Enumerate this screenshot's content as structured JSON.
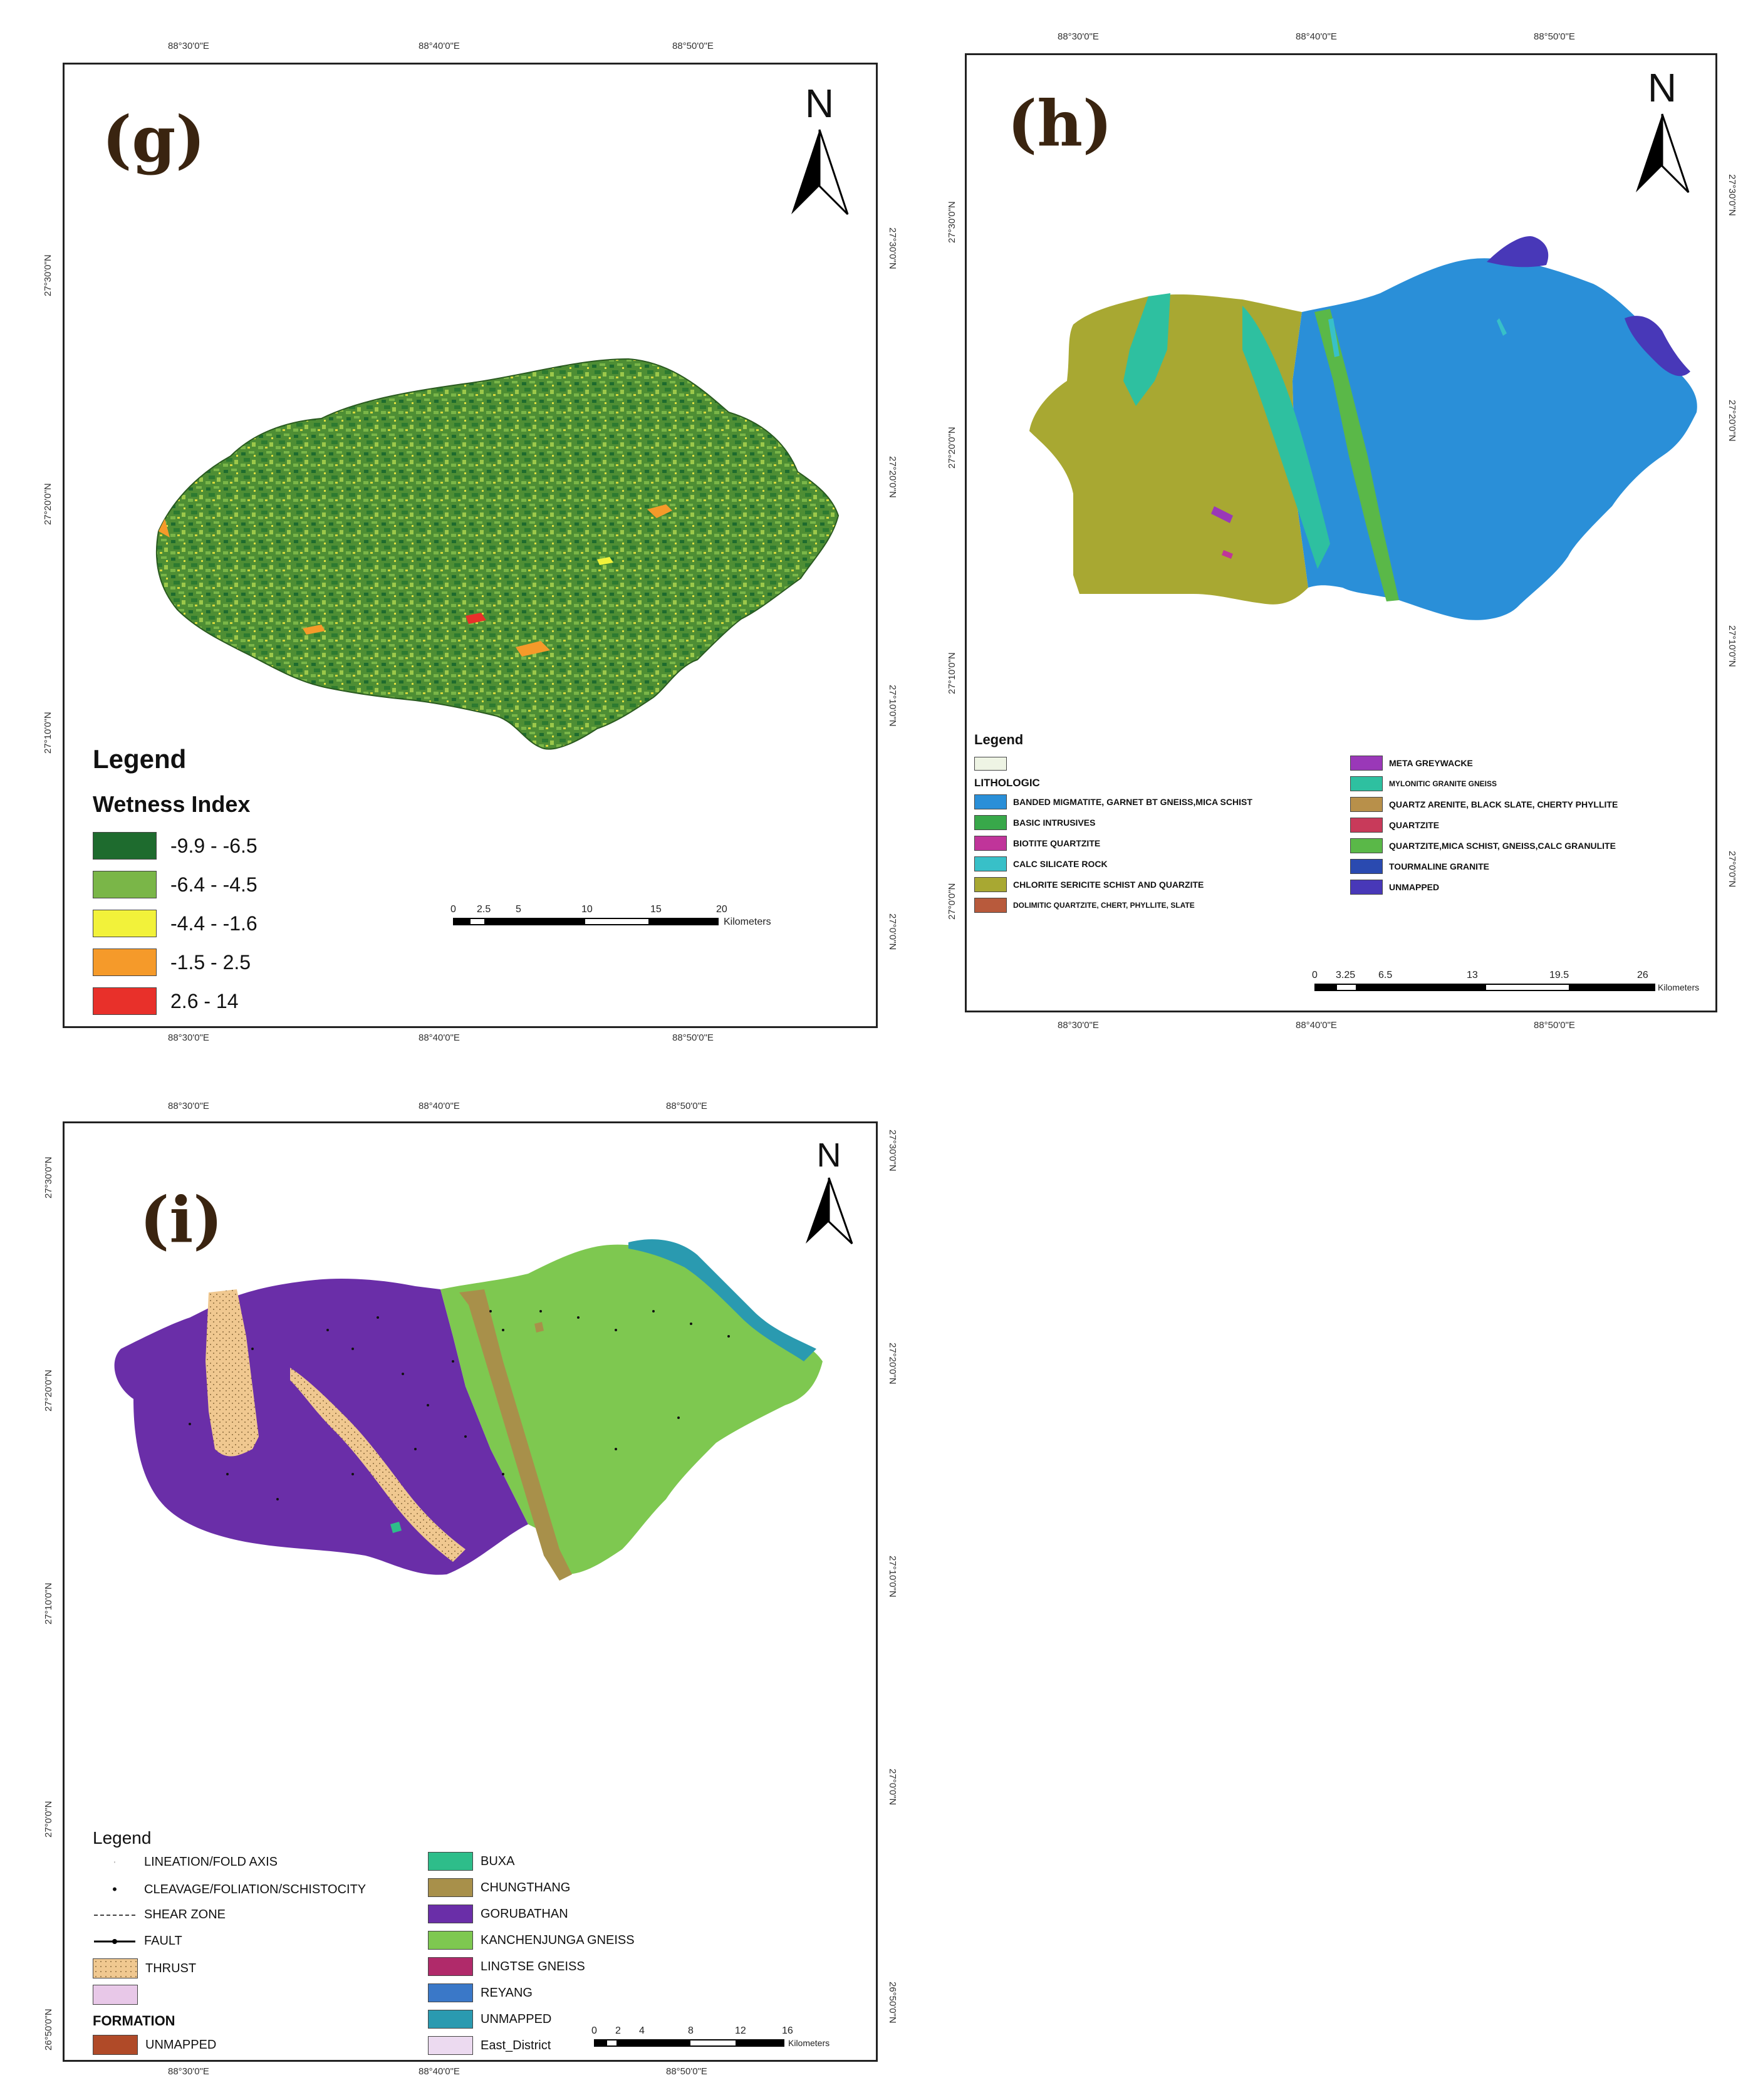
{
  "panel_g": {
    "label": "(g)",
    "north": "N",
    "top_coords": [
      "88°30'0\"E",
      "88°40'0\"E",
      "88°50'0\"E"
    ],
    "bottom_coords": [
      "88°30'0\"E",
      "88°40'0\"E",
      "88°50'0\"E"
    ],
    "left_coords": [
      "27°30'0\"N",
      "27°20'0\"N",
      "27°10'0\"N"
    ],
    "right_coords": [
      "27°30'0\"N",
      "27°20'0\"N",
      "27°10'0\"N",
      "27°0'0\"N"
    ],
    "legend_title": "Legend",
    "legend_subtitle": "Wetness Index",
    "legend_items": [
      {
        "label": "-9.9 - -6.5",
        "color": "#1e6b2e"
      },
      {
        "label": "-6.4 - -4.5",
        "color": "#7ab648"
      },
      {
        "label": "-4.4 - -1.6",
        "color": "#f2f23a"
      },
      {
        "label": "-1.5 - 2.5",
        "color": "#f59a2a"
      },
      {
        "label": "2.6 - 14",
        "color": "#e8302a"
      }
    ],
    "scale_ticks": [
      "0",
      "2.5",
      "5",
      "10",
      "15",
      "20"
    ],
    "scale_unit": "Kilometers"
  },
  "panel_h": {
    "label": "(h)",
    "north": "N",
    "top_coords": [
      "88°30'0\"E",
      "88°40'0\"E",
      "88°50'0\"E"
    ],
    "bottom_coords": [
      "88°30'0\"E",
      "88°40'0\"E",
      "88°50'0\"E"
    ],
    "left_coords": [
      "27°30'0\"N",
      "27°20'0\"N",
      "27°10'0\"N",
      "27°0'0\"N"
    ],
    "right_coords": [
      "27°30'0\"N",
      "27°20'0\"N",
      "27°10'0\"N",
      "27°0'0\"N"
    ],
    "legend_title": "Legend",
    "legend_group": "LITHOLOGIC",
    "legend_left": [
      {
        "label": "BANDED MIGMATITE, GARNET BT GNEISS,MICA SCHIST",
        "color": "#2a8fd8"
      },
      {
        "label": "BASIC INTRUSIVES",
        "color": "#38a84a"
      },
      {
        "label": "BIOTITE QUARTZITE",
        "color": "#c0349a"
      },
      {
        "label": "CALC SILICATE ROCK",
        "color": "#38c0c8"
      },
      {
        "label": "CHLORITE SERICITE SCHIST AND QUARZITE",
        "color": "#a8a832"
      },
      {
        "label": "DOLIMITIC QUARTZITE, CHERT, PHYLLITE, SLATE",
        "color": "#b85a3c"
      }
    ],
    "legend_right": [
      {
        "label": "META GREYWACKE",
        "color": "#9a38b8"
      },
      {
        "label": "MYLONITIC GRANITE GNEISS",
        "color": "#2ec0a0"
      },
      {
        "label": "QUARTZ ARENITE, BLACK SLATE, CHERTY PHYLLITE",
        "color": "#b8904a"
      },
      {
        "label": "QUARTZITE",
        "color": "#c83a5a"
      },
      {
        "label": "QUARTZITE,MICA SCHIST, GNEISS,CALC GRANULITE",
        "color": "#5ab848"
      },
      {
        "label": "TOURMALINE GRANITE",
        "color": "#2a4ab0"
      },
      {
        "label": "UNMAPPED",
        "color": "#4838b8"
      }
    ],
    "scale_ticks": [
      "0",
      "3.25",
      "6.5",
      "13",
      "19.5",
      "26"
    ],
    "scale_unit": "Kilometers"
  },
  "panel_i": {
    "label": "(i)",
    "north": "N",
    "top_coords": [
      "88°30'0\"E",
      "88°40'0\"E",
      "88°50'0\"E"
    ],
    "bottom_coords": [
      "88°30'0\"E",
      "88°40'0\"E",
      "88°50'0\"E"
    ],
    "left_coords": [
      "27°30'0\"N",
      "27°20'0\"N",
      "27°10'0\"N",
      "27°0'0\"N",
      "26°50'0\"N"
    ],
    "right_coords": [
      "27°30'0\"N",
      "27°20'0\"N",
      "27°10'0\"N",
      "27°0'0\"N",
      "26°50'0\"N"
    ],
    "legend_title": "Legend",
    "legend_left": [
      {
        "label": "LINEATION/FOLD AXIS",
        "kind": "dot-light"
      },
      {
        "label": "CLEAVAGE/FOLIATION/SCHISTOCITY",
        "kind": "dot"
      },
      {
        "label": "SHEAR ZONE",
        "kind": "dash"
      },
      {
        "label": "FAULT",
        "kind": "line"
      },
      {
        "label": "THRUST",
        "kind": "swatch",
        "color": "#f0c890"
      },
      {
        "label": "",
        "kind": "swatch",
        "color": "#e8c8e8"
      }
    ],
    "formation_title": "FORMATION",
    "formation_unmapped": {
      "label": "UNMAPPED",
      "color": "#b04a28"
    },
    "legend_right": [
      {
        "label": "BUXA",
        "color": "#2ebd8a"
      },
      {
        "label": "CHUNGTHANG",
        "color": "#a8904a"
      },
      {
        "label": "GORUBATHAN",
        "color": "#6a2ea8"
      },
      {
        "label": "KANCHENJUNGA GNEISS",
        "color": "#7ec850"
      },
      {
        "label": "LINGTSE GNEISS",
        "color": "#b02a6a"
      },
      {
        "label": "REYANG",
        "color": "#3a78c8"
      },
      {
        "label": "UNMAPPED",
        "color": "#2a9ab0"
      },
      {
        "label": "East_District",
        "color": "#ecdaf0"
      }
    ],
    "scale_ticks": [
      "0",
      "2",
      "4",
      "8",
      "12",
      "16"
    ],
    "scale_unit": "Kilometers"
  }
}
